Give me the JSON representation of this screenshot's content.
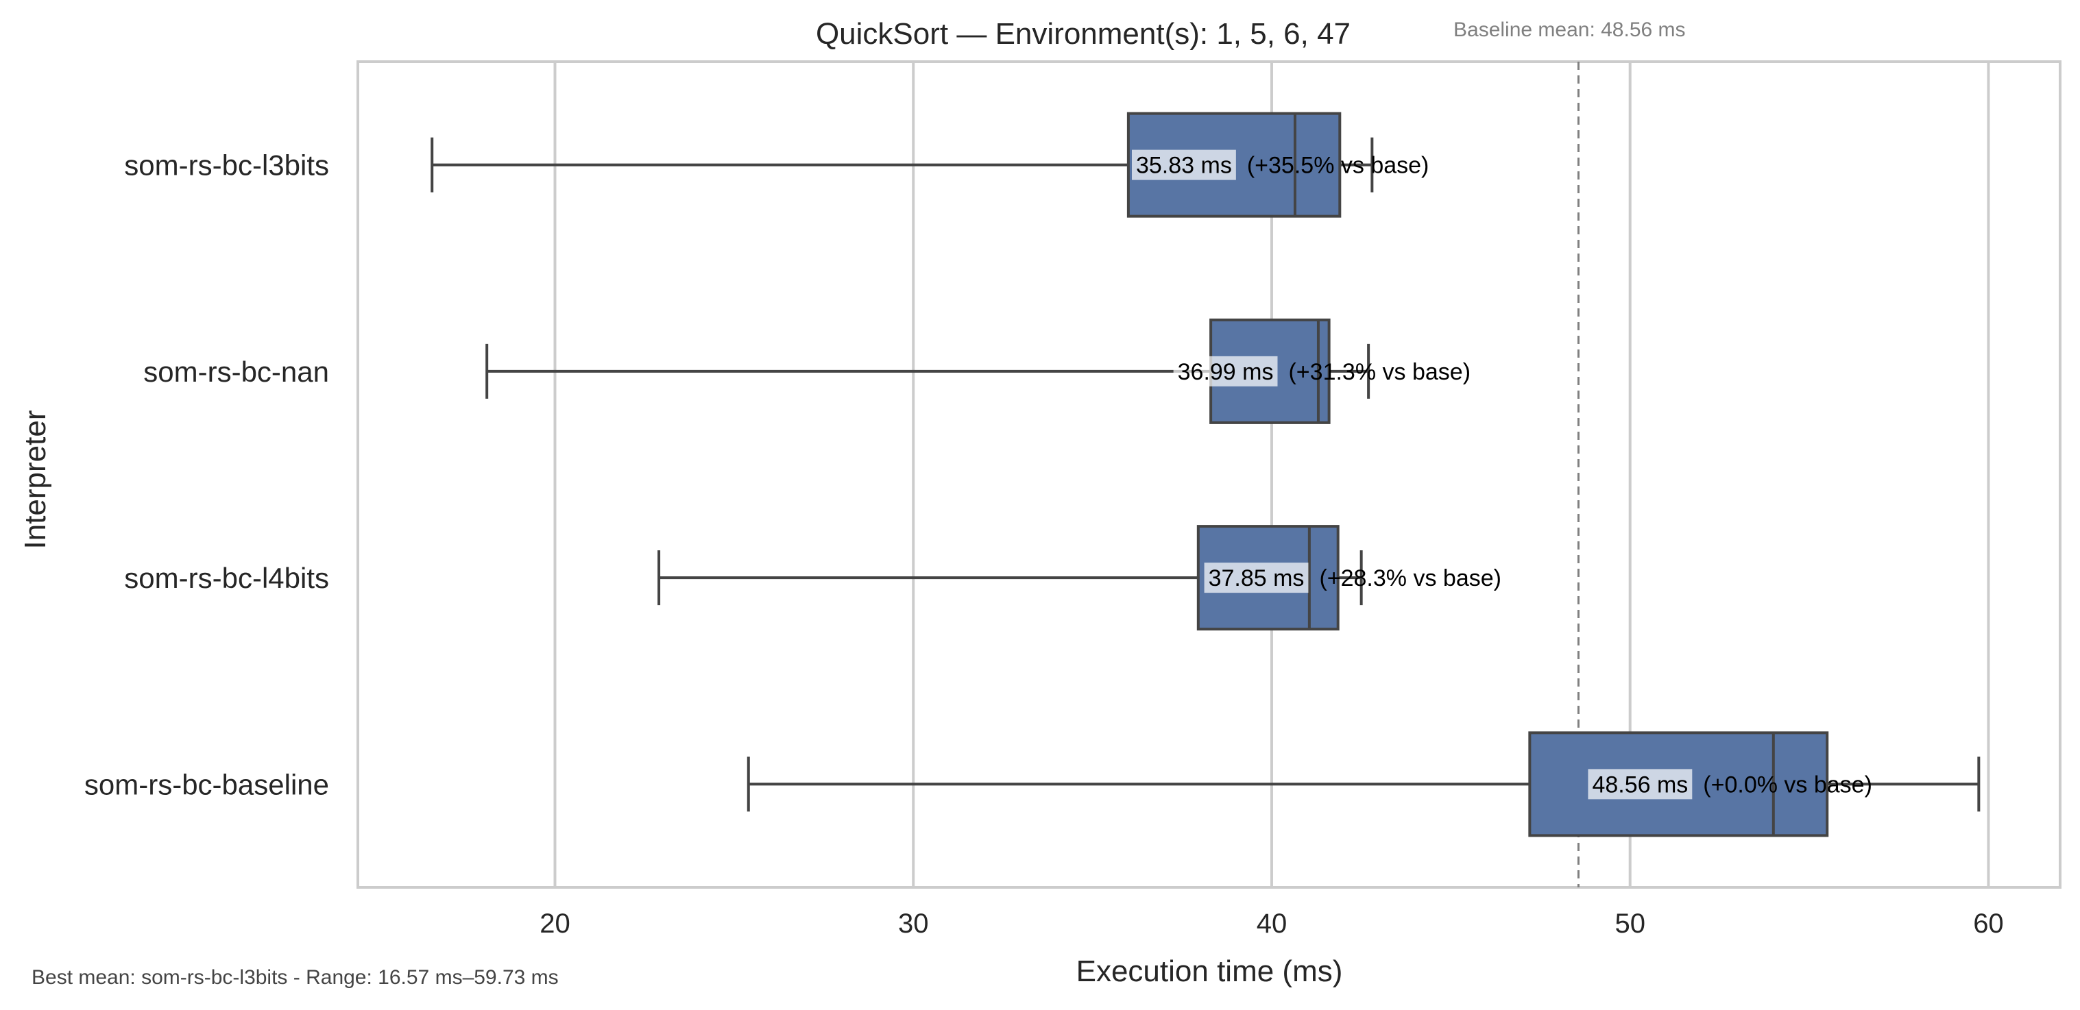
{
  "chart_data": {
    "type": "boxplot",
    "orientation": "horizontal",
    "title": "QuickSort — Environment(s): 1, 5, 6, 47",
    "xlabel": "Execution time (ms)",
    "ylabel": "Interpreter",
    "xlim": [
      14.5,
      62.0
    ],
    "xticks": [
      20,
      30,
      40,
      50,
      60
    ],
    "grid": "vertical",
    "box_color": "#5875a4",
    "edge_color": "#444444",
    "categories": [
      "som-rs-bc-l3bits",
      "som-rs-bc-nan",
      "som-rs-bc-l4bits",
      "som-rs-bc-baseline"
    ],
    "boxes": [
      {
        "label": "som-rs-bc-l3bits",
        "whisker_low": 16.57,
        "q1": 36.0,
        "median": 40.65,
        "q3": 41.9,
        "whisker_high": 42.8,
        "mean_text": "35.83 ms",
        "delta_text": "(+35.5% vs base)"
      },
      {
        "label": "som-rs-bc-nan",
        "whisker_low": 18.1,
        "q1": 38.3,
        "median": 41.3,
        "q3": 41.6,
        "whisker_high": 42.7,
        "mean_text": "36.99 ms",
        "delta_text": "(+31.3% vs base)"
      },
      {
        "label": "som-rs-bc-l4bits",
        "whisker_low": 22.9,
        "q1": 37.95,
        "median": 41.05,
        "q3": 41.85,
        "whisker_high": 42.5,
        "mean_text": "37.85 ms",
        "delta_text": "(+28.3% vs base)"
      },
      {
        "label": "som-rs-bc-baseline",
        "whisker_low": 25.4,
        "q1": 47.2,
        "median": 54.0,
        "q3": 55.5,
        "whisker_high": 59.73,
        "mean_text": "48.56 ms",
        "delta_text": "(+0.0% vs base)"
      }
    ],
    "reference_line": {
      "value": 48.56,
      "style": "dashed",
      "label": "Baseline mean: 48.56 ms"
    },
    "footnote": "Best mean: som-rs-bc-l3bits - Range: 16.57 ms–59.73 ms"
  }
}
